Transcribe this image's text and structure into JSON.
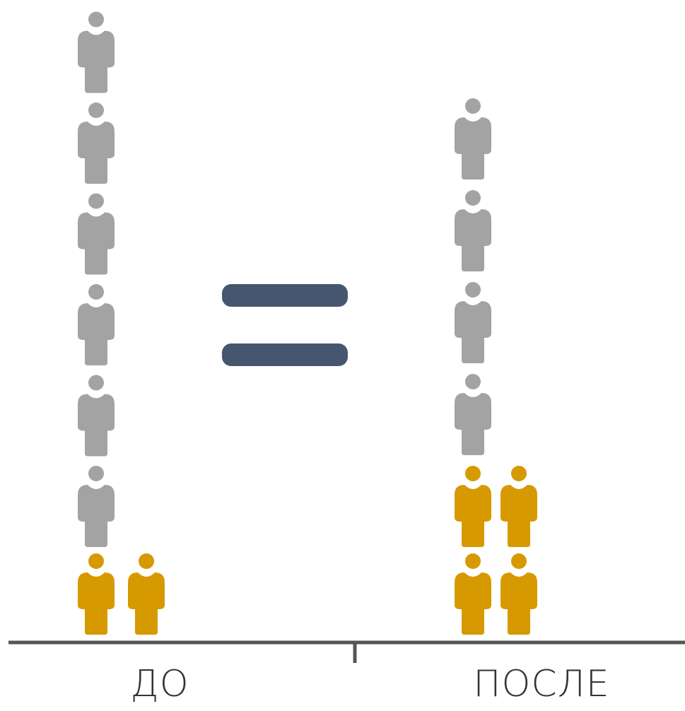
{
  "chart_data": {
    "type": "pictogram",
    "categories": [
      "ДО",
      "ПОСЛЕ"
    ],
    "series": [
      {
        "key": "gray",
        "values": [
          6,
          4
        ]
      },
      {
        "key": "gold",
        "values": [
          2,
          4
        ]
      }
    ],
    "annotation_symbol": "equals-sign",
    "grid": false
  },
  "colors": {
    "gray": "#a3a3a3",
    "gold": "#d69a00",
    "equals": "#46566e",
    "axis": "#555555"
  },
  "icons": {
    "unit": "person-icon",
    "annotation": "equals-icon"
  }
}
